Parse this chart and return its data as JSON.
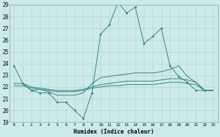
{
  "x": [
    0,
    1,
    2,
    3,
    4,
    5,
    6,
    7,
    8,
    9,
    10,
    11,
    12,
    13,
    14,
    15,
    16,
    17,
    18,
    19,
    20,
    21,
    22,
    23
  ],
  "line_main": [
    23.8,
    22.3,
    21.7,
    21.5,
    21.5,
    20.7,
    20.7,
    20.0,
    19.3,
    21.5,
    26.5,
    27.3,
    29.2,
    28.3,
    28.8,
    25.7,
    26.3,
    27.0,
    23.8,
    22.9,
    22.4,
    21.7,
    21.7,
    null
  ],
  "line_b": [
    null,
    22.3,
    21.7,
    21.8,
    21.6,
    21.3,
    21.3,
    21.3,
    21.5,
    22.3,
    22.8,
    22.9,
    23.0,
    23.1,
    23.2,
    23.2,
    23.2,
    23.3,
    23.5,
    23.8,
    22.9,
    22.4,
    21.7,
    21.7
  ],
  "line_c": [
    22.3,
    22.3,
    22.0,
    21.9,
    21.8,
    21.7,
    21.7,
    21.7,
    21.8,
    22.0,
    22.2,
    22.3,
    22.4,
    22.5,
    22.5,
    22.5,
    22.5,
    22.6,
    22.7,
    22.7,
    22.6,
    22.4,
    21.7,
    21.7
  ],
  "line_d": [
    22.1,
    22.1,
    21.9,
    21.8,
    21.7,
    21.6,
    21.6,
    21.6,
    21.7,
    21.9,
    22.0,
    22.1,
    22.1,
    22.2,
    22.2,
    22.2,
    22.2,
    22.3,
    22.4,
    22.4,
    22.3,
    22.2,
    21.7,
    21.7
  ],
  "color": "#2e7f7f",
  "bg_color": "#cceae8",
  "grid_color": "#aed4d2",
  "ylim": [
    19,
    29
  ],
  "xlim": [
    -0.5,
    23.5
  ],
  "yticks": [
    19,
    20,
    21,
    22,
    23,
    24,
    25,
    26,
    27,
    28,
    29
  ],
  "xticks": [
    0,
    1,
    2,
    3,
    4,
    5,
    6,
    7,
    8,
    9,
    10,
    11,
    12,
    13,
    14,
    15,
    16,
    17,
    18,
    19,
    20,
    21,
    22,
    23
  ],
  "xlabel": "Humidex (Indice chaleur)"
}
